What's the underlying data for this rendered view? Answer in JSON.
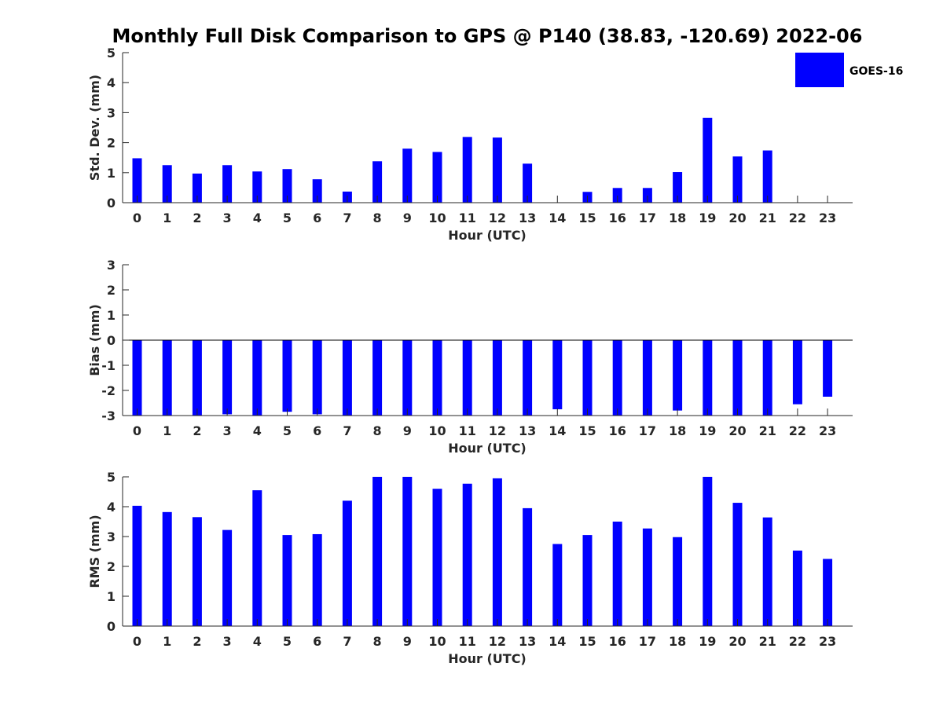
{
  "chart_data": {
    "type": "bar",
    "title": "Monthly Full Disk Comparison to GPS @ P140 (38.83, -120.69) 2022-06",
    "legend": {
      "entries": [
        "GOES-16"
      ],
      "placement": "top-right"
    },
    "bar_color": "#0000ff",
    "axis_color": "#262626",
    "categories": [
      "0",
      "1",
      "2",
      "3",
      "4",
      "5",
      "6",
      "7",
      "8",
      "9",
      "10",
      "11",
      "12",
      "13",
      "14",
      "15",
      "16",
      "17",
      "18",
      "19",
      "20",
      "21",
      "22",
      "23"
    ],
    "panels": [
      {
        "ylabel": "Std. Dev. (mm)",
        "xlabel": "Hour (UTC)",
        "ylim": [
          0,
          5
        ],
        "yticks": [
          0,
          1,
          2,
          3,
          4,
          5
        ],
        "series": [
          {
            "name": "GOES-16",
            "values": [
              1.48,
              1.25,
              0.97,
              1.25,
              1.04,
              1.12,
              0.78,
              0.37,
              1.38,
              1.8,
              1.69,
              2.19,
              2.17,
              1.3,
              null,
              0.36,
              0.49,
              0.49,
              1.02,
              2.83,
              1.54,
              1.74,
              null,
              null
            ]
          }
        ]
      },
      {
        "ylabel": "Bias (mm)",
        "xlabel": "Hour (UTC)",
        "ylim": [
          -3,
          3
        ],
        "yticks": [
          -3,
          -2,
          -1,
          0,
          1,
          2,
          3
        ],
        "series": [
          {
            "name": "GOES-16",
            "values": [
              -3.0,
              -3.0,
              -3.0,
              -2.95,
              -3.0,
              -2.85,
              -2.95,
              -3.0,
              -3.0,
              -3.0,
              -3.0,
              -3.0,
              -3.0,
              -3.0,
              -2.75,
              -3.0,
              -3.0,
              -3.0,
              -2.8,
              -3.0,
              -3.0,
              -3.0,
              -2.55,
              -2.25
            ]
          }
        ]
      },
      {
        "ylabel": "RMS (mm)",
        "xlabel": "Hour (UTC)",
        "ylim": [
          0,
          5
        ],
        "yticks": [
          0,
          1,
          2,
          3,
          4,
          5
        ],
        "series": [
          {
            "name": "GOES-16",
            "values": [
              4.03,
              3.82,
              3.65,
              3.22,
              4.55,
              3.05,
              3.08,
              4.2,
              5.0,
              5.0,
              4.6,
              4.77,
              4.95,
              3.95,
              2.75,
              3.05,
              3.5,
              3.27,
              2.98,
              5.0,
              4.13,
              3.64,
              2.53,
              2.25
            ]
          }
        ]
      }
    ]
  }
}
